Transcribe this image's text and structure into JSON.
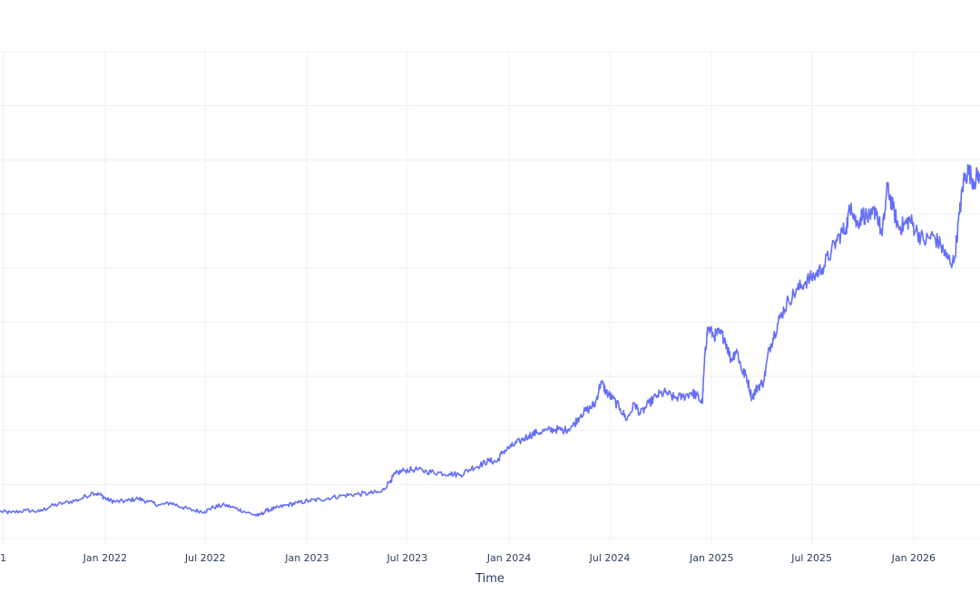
{
  "chart_data": {
    "type": "line",
    "title": "",
    "xlabel": "Time",
    "ylabel": "",
    "grid": true,
    "line_color": "#636efa",
    "x_tick_labels": [
      "1",
      "Jan 2022",
      "Jul 2022",
      "Jan 2023",
      "Jul 2023",
      "Jan 2024",
      "Jul 2024",
      "Jan 2025",
      "Jul 2025",
      "Jan 2026"
    ],
    "x_tick_dates": [
      "2021-07-01",
      "2022-01-01",
      "2022-07-01",
      "2023-01-01",
      "2023-07-01",
      "2024-01-01",
      "2024-07-01",
      "2025-01-01",
      "2025-07-01",
      "2026-01-01"
    ],
    "xlim": [
      "2021-06-25",
      "2026-05-01"
    ],
    "ylim": [
      0.9,
      10.0
    ],
    "series": [
      {
        "x": [
          "2021-06-25",
          "2021-07-15",
          "2021-08-10",
          "2021-09-05",
          "2021-09-25",
          "2021-10-20",
          "2021-11-15",
          "2021-12-10",
          "2021-12-25",
          "2022-01-05",
          "2022-01-20",
          "2022-02-10",
          "2022-03-01",
          "2022-03-20",
          "2022-04-10",
          "2022-04-30",
          "2022-05-20",
          "2022-06-10",
          "2022-06-30",
          "2022-07-15",
          "2022-08-05",
          "2022-08-25",
          "2022-09-15",
          "2022-10-05",
          "2022-10-20",
          "2022-11-05",
          "2022-11-25",
          "2022-12-15",
          "2023-01-05",
          "2023-01-25",
          "2023-02-15",
          "2023-03-10",
          "2023-04-01",
          "2023-04-25",
          "2023-05-15",
          "2023-06-01",
          "2023-06-10",
          "2023-06-25",
          "2023-07-15",
          "2023-08-05",
          "2023-08-25",
          "2023-09-15",
          "2023-10-05",
          "2023-10-25",
          "2023-11-10",
          "2023-11-25",
          "2023-12-10",
          "2023-12-20",
          "2024-01-05",
          "2024-01-20",
          "2024-02-05",
          "2024-02-20",
          "2024-03-10",
          "2024-03-25",
          "2024-04-10",
          "2024-04-25",
          "2024-05-10",
          "2024-05-25",
          "2024-06-05",
          "2024-06-15",
          "2024-06-25",
          "2024-07-05",
          "2024-07-20",
          "2024-08-01",
          "2024-08-15",
          "2024-08-25",
          "2024-09-10",
          "2024-09-25",
          "2024-10-10",
          "2024-10-25",
          "2024-11-10",
          "2024-11-25",
          "2024-12-05",
          "2024-12-15",
          "2024-12-20",
          "2024-12-25",
          "2025-01-05",
          "2025-01-15",
          "2025-01-25",
          "2025-02-05",
          "2025-02-15",
          "2025-02-25",
          "2025-03-05",
          "2025-03-15",
          "2025-03-25",
          "2025-04-05",
          "2025-04-15",
          "2025-04-25",
          "2025-05-05",
          "2025-05-20",
          "2025-06-05",
          "2025-06-20",
          "2025-07-05",
          "2025-07-20",
          "2025-08-05",
          "2025-08-20",
          "2025-09-01",
          "2025-09-10",
          "2025-09-20",
          "2025-10-01",
          "2025-10-15",
          "2025-10-25",
          "2025-11-05",
          "2025-11-15",
          "2025-11-25",
          "2025-12-05",
          "2025-12-15",
          "2025-12-25",
          "2026-01-05",
          "2026-01-20",
          "2026-02-05",
          "2026-02-20",
          "2026-03-01",
          "2026-03-15",
          "2026-03-25",
          "2026-04-01",
          "2026-04-10",
          "2026-04-20",
          "2026-04-30"
        ],
        "y": [
          1.5,
          1.48,
          1.52,
          1.5,
          1.6,
          1.66,
          1.72,
          1.85,
          1.8,
          1.72,
          1.68,
          1.7,
          1.74,
          1.68,
          1.62,
          1.66,
          1.58,
          1.52,
          1.5,
          1.58,
          1.62,
          1.56,
          1.48,
          1.42,
          1.52,
          1.56,
          1.62,
          1.66,
          1.7,
          1.72,
          1.76,
          1.8,
          1.82,
          1.84,
          1.86,
          2.08,
          2.2,
          2.26,
          2.28,
          2.24,
          2.22,
          2.2,
          2.18,
          2.3,
          2.36,
          2.44,
          2.42,
          2.6,
          2.7,
          2.8,
          2.9,
          2.96,
          3.0,
          3.02,
          3.0,
          3.08,
          3.3,
          3.4,
          3.5,
          3.9,
          3.7,
          3.6,
          3.4,
          3.2,
          3.5,
          3.3,
          3.5,
          3.65,
          3.7,
          3.6,
          3.62,
          3.7,
          3.65,
          3.5,
          4.4,
          4.9,
          4.75,
          4.8,
          4.7,
          4.3,
          4.5,
          4.1,
          4.0,
          3.6,
          3.8,
          3.9,
          4.5,
          4.8,
          5.1,
          5.4,
          5.6,
          5.75,
          5.85,
          6.0,
          6.3,
          6.6,
          6.75,
          7.2,
          6.8,
          7.0,
          6.9,
          7.1,
          6.6,
          7.5,
          7.1,
          6.75,
          6.8,
          6.9,
          6.7,
          6.5,
          6.6,
          6.4,
          6.2,
          6.1,
          7.0,
          7.6,
          7.8,
          7.6,
          7.75
        ]
      }
    ]
  }
}
